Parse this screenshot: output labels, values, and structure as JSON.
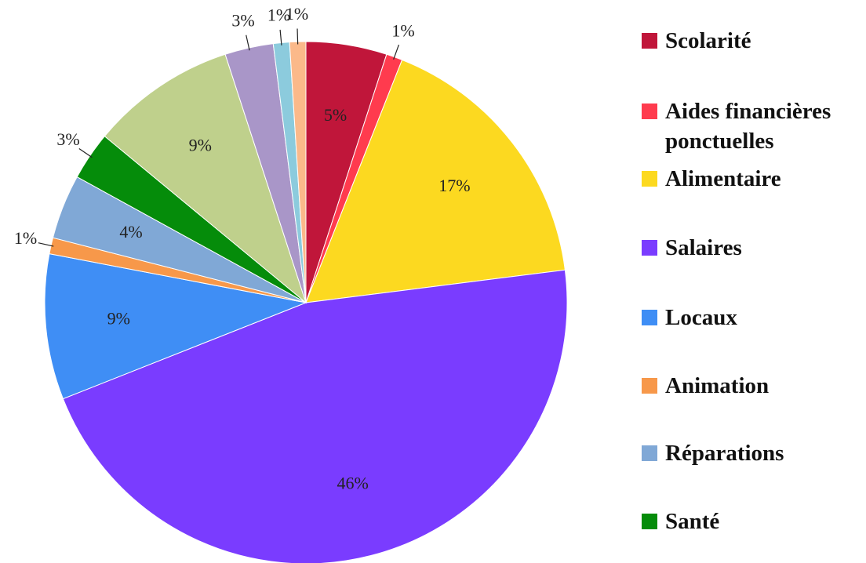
{
  "chart_data": {
    "type": "pie",
    "categories": [
      "Scolarité",
      "Aides financières ponctuelles",
      "Alimentaire",
      "Salaires",
      "Locaux",
      "Animation",
      "Réparations",
      "Santé",
      null,
      null,
      null,
      null
    ],
    "values": [
      5,
      1,
      17,
      46,
      9,
      1,
      4,
      3,
      9,
      3,
      1,
      1
    ],
    "colors": [
      "#c0163a",
      "#ff3b4e",
      "#fcd920",
      "#7a3cff",
      "#3f8ef5",
      "#f7984a",
      "#80a8d6",
      "#058c0a",
      "#bfd08c",
      "#a996c8",
      "#8ccbdd",
      "#fbb98a"
    ],
    "value_labels": [
      "5%",
      "1%",
      "17%",
      "46%",
      "9%",
      "1%",
      "4%",
      "3%",
      "9%",
      "3%",
      "1%",
      "1%"
    ],
    "legend": "right"
  }
}
